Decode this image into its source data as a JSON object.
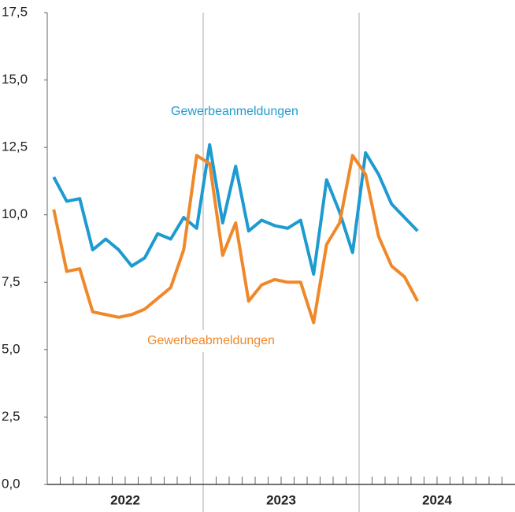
{
  "chart_data": {
    "type": "line",
    "year_labels": [
      "2022",
      "2023",
      "2024"
    ],
    "categories": [
      null,
      null,
      null,
      null,
      null,
      null,
      null,
      null,
      null,
      null,
      null,
      null,
      null,
      null,
      null,
      null,
      null,
      null,
      null,
      null,
      null,
      null,
      null,
      null,
      null,
      null,
      null,
      null,
      null,
      null,
      null,
      null,
      null,
      null,
      null,
      null
    ],
    "series": [
      {
        "name": "Gewerbeanmeldungen",
        "color": "#1d9bd1",
        "values": [
          11.4,
          10.5,
          10.6,
          8.7,
          9.1,
          8.7,
          8.1,
          8.4,
          9.3,
          9.1,
          9.9,
          9.5,
          12.6,
          9.7,
          11.8,
          9.4,
          9.8,
          9.6,
          9.5,
          9.8,
          7.8,
          11.3,
          10.1,
          8.6,
          12.3,
          11.5,
          10.4,
          9.9,
          9.4,
          null,
          null,
          null,
          null,
          null,
          null,
          null
        ]
      },
      {
        "name": "Gewerbeabmeldungen",
        "color": "#f0882a",
        "values": [
          10.2,
          7.9,
          8.0,
          6.4,
          6.3,
          6.2,
          6.3,
          6.5,
          6.9,
          7.3,
          8.7,
          12.2,
          11.9,
          8.5,
          9.7,
          6.8,
          7.4,
          7.6,
          7.5,
          7.5,
          6.0,
          8.9,
          9.7,
          12.2,
          11.5,
          9.2,
          8.1,
          7.7,
          6.8,
          null,
          null,
          null,
          null,
          null,
          null,
          null
        ]
      }
    ],
    "ylim": [
      0,
      17.5
    ],
    "yticks": [
      {
        "value": 0,
        "label": "0,0"
      },
      {
        "value": 2.5,
        "label": "2,5"
      },
      {
        "value": 5,
        "label": "5,0"
      },
      {
        "value": 7.5,
        "label": "7,5"
      },
      {
        "value": 10,
        "label": "10,0"
      },
      {
        "value": 12.5,
        "label": "12,5"
      },
      {
        "value": 15,
        "label": "15,0"
      },
      {
        "value": 17.5,
        "label": "17,5"
      }
    ]
  }
}
